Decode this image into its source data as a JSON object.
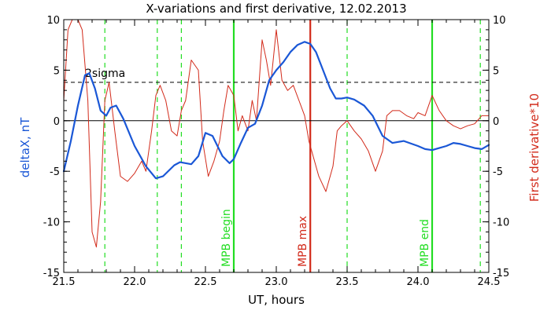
{
  "chart_data": {
    "type": "line",
    "title": "X-variations and first derivative, 12.02.2013",
    "xlabel": "UT, hours",
    "ylabel_left": "deltaX, nT",
    "ylabel_right": "First derivative*10",
    "xlim": [
      21.5,
      24.5
    ],
    "ylim": [
      -15,
      10
    ],
    "xticks": [
      "21.5",
      "22.0",
      "22.5",
      "23.0",
      "23.5",
      "24.0",
      "24.5"
    ],
    "yticks_left": [
      "-15",
      "-10",
      "-5",
      "0",
      "5",
      "10"
    ],
    "yticks_right": [
      "-15",
      "-10",
      "-5",
      "0",
      "5",
      "10"
    ],
    "threshold": {
      "label": "2sigma",
      "value": 3.8
    },
    "zero_line": 0,
    "colors": {
      "deltaX": "#1a57d6",
      "derivative": "#d22a1a",
      "green": "#22dd22",
      "red_marker": "#d22a1a"
    },
    "series": [
      {
        "key": "deltaX",
        "x": [
          21.5,
          21.55,
          21.6,
          21.65,
          21.68,
          21.72,
          21.76,
          21.8,
          21.83,
          21.87,
          21.92,
          22.0,
          22.08,
          22.15,
          22.2,
          22.28,
          22.32,
          22.4,
          22.45,
          22.5,
          22.55,
          22.62,
          22.67,
          22.7,
          22.75,
          22.8,
          22.85,
          22.9,
          22.95,
          23.0,
          23.05,
          23.1,
          23.15,
          23.2,
          23.24,
          23.28,
          23.33,
          23.38,
          23.42,
          23.46,
          23.5,
          23.55,
          23.62,
          23.68,
          23.75,
          23.82,
          23.9,
          24.0,
          24.05,
          24.1,
          24.15,
          24.2,
          24.25,
          24.3,
          24.35,
          24.4,
          24.45,
          24.5
        ],
        "y": [
          -5.0,
          -2.0,
          1.5,
          4.5,
          4.7,
          3.2,
          1.0,
          0.5,
          1.3,
          1.5,
          0.2,
          -2.5,
          -4.5,
          -5.7,
          -5.5,
          -4.4,
          -4.1,
          -4.3,
          -3.5,
          -1.2,
          -1.5,
          -3.5,
          -4.2,
          -3.8,
          -2.2,
          -0.7,
          -0.3,
          1.5,
          4.0,
          5.0,
          5.8,
          6.8,
          7.5,
          7.8,
          7.6,
          6.8,
          5.0,
          3.2,
          2.2,
          2.2,
          2.3,
          2.1,
          1.5,
          0.5,
          -1.5,
          -2.2,
          -2.0,
          -2.5,
          -2.8,
          -2.9,
          -2.7,
          -2.5,
          -2.2,
          -2.3,
          -2.5,
          -2.7,
          -2.8,
          -2.4
        ]
      },
      {
        "key": "derivative",
        "x": [
          21.5,
          21.53,
          21.56,
          21.6,
          21.63,
          21.67,
          21.7,
          21.73,
          21.76,
          21.79,
          21.82,
          21.86,
          21.9,
          21.95,
          22.0,
          22.05,
          22.08,
          22.12,
          22.15,
          22.18,
          22.22,
          22.26,
          22.3,
          22.33,
          22.36,
          22.4,
          22.45,
          22.48,
          22.52,
          22.56,
          22.6,
          22.63,
          22.66,
          22.7,
          22.73,
          22.76,
          22.8,
          22.83,
          22.86,
          22.9,
          22.93,
          22.96,
          23.0,
          23.04,
          23.08,
          23.12,
          23.16,
          23.2,
          23.23,
          23.26,
          23.3,
          23.35,
          23.4,
          23.43,
          23.46,
          23.5,
          23.55,
          23.6,
          23.65,
          23.7,
          23.75,
          23.78,
          23.82,
          23.87,
          23.92,
          23.97,
          24.0,
          24.05,
          24.1,
          24.15,
          24.2,
          24.25,
          24.3,
          24.35,
          24.4,
          24.45,
          24.5
        ],
        "y": [
          2.0,
          9.0,
          10.0,
          10.0,
          9.0,
          2.0,
          -11.0,
          -12.5,
          -8.0,
          2.0,
          3.8,
          -1.0,
          -5.5,
          -6.0,
          -5.2,
          -4.0,
          -5.0,
          -1.0,
          2.5,
          3.5,
          2.0,
          -1.0,
          -1.5,
          1.0,
          2.0,
          6.0,
          5.0,
          -2.0,
          -5.5,
          -4.0,
          -2.0,
          1.0,
          3.5,
          2.5,
          -1.0,
          0.5,
          -1.0,
          2.0,
          0.0,
          8.0,
          6.0,
          3.5,
          9.0,
          4.0,
          3.0,
          3.5,
          2.0,
          0.5,
          -2.0,
          -3.5,
          -5.5,
          -7.0,
          -4.5,
          -1.0,
          -0.5,
          0.0,
          -1.0,
          -1.8,
          -3.0,
          -5.0,
          -3.0,
          0.5,
          1.0,
          1.0,
          0.5,
          0.2,
          0.8,
          0.5,
          2.5,
          1.0,
          0.0,
          -0.5,
          -0.8,
          -0.5,
          -0.3,
          0.5,
          0.5
        ]
      }
    ],
    "vlines": [
      {
        "x": 21.79,
        "style": "dashed",
        "color_key": "green"
      },
      {
        "x": 22.16,
        "style": "dashed",
        "color_key": "green"
      },
      {
        "x": 22.33,
        "style": "dashed",
        "color_key": "green"
      },
      {
        "x": 22.7,
        "style": "solid",
        "color_key": "green",
        "label": "MPB begin"
      },
      {
        "x": 23.24,
        "style": "solid",
        "color_key": "red_marker",
        "label": "MPB max"
      },
      {
        "x": 23.5,
        "style": "dashed",
        "color_key": "green"
      },
      {
        "x": 24.1,
        "style": "solid",
        "color_key": "green",
        "label": "MPB end"
      },
      {
        "x": 24.44,
        "style": "dashed",
        "color_key": "green"
      }
    ]
  }
}
